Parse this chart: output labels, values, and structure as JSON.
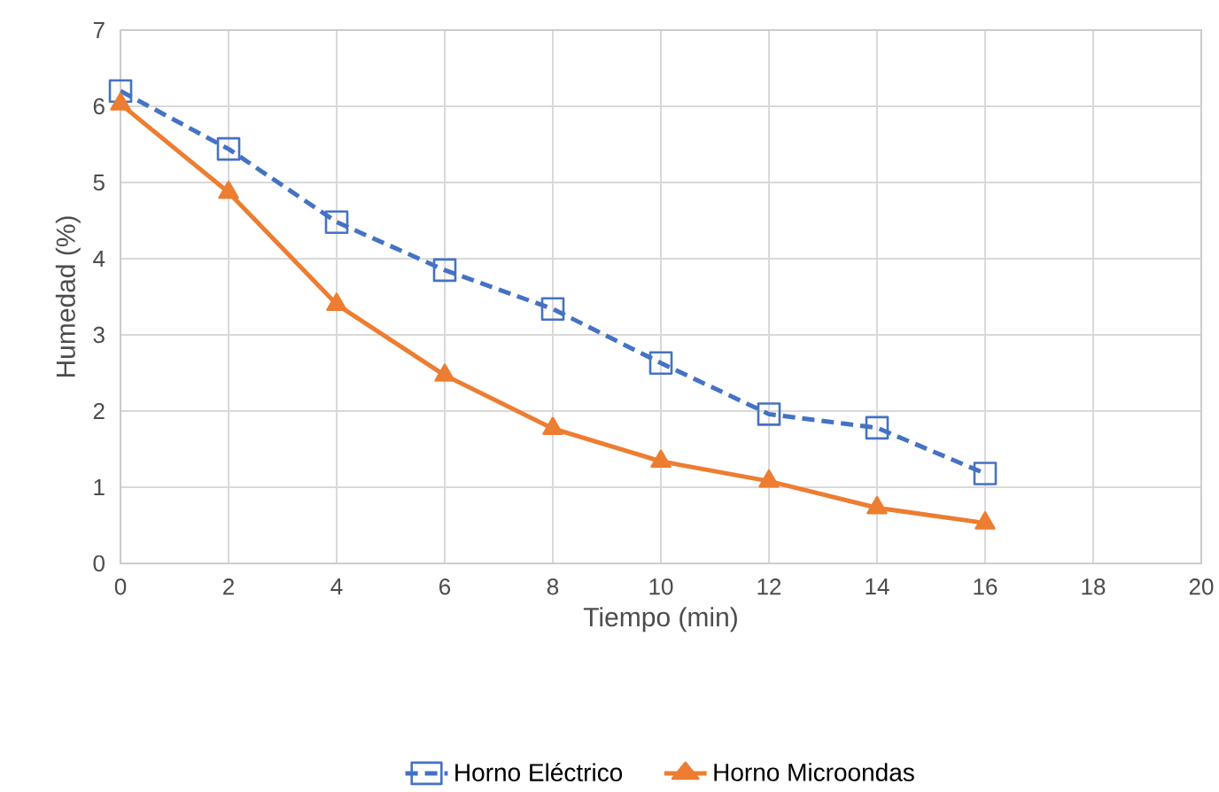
{
  "chart_data": {
    "type": "line",
    "xlabel": "Tiempo  (min)",
    "ylabel": "Humedad (%)",
    "x": [
      0,
      2,
      4,
      6,
      8,
      10,
      12,
      14,
      16
    ],
    "series": [
      {
        "name": "Horno Eléctrico",
        "color": "#4472c4",
        "marker": "square",
        "line_style": "dashed",
        "values": [
          6.2,
          5.44,
          4.48,
          3.85,
          3.34,
          2.63,
          1.96,
          1.78,
          1.18
        ]
      },
      {
        "name": "Horno Microondas",
        "color": "#ed7d31",
        "marker": "triangle",
        "line_style": "solid",
        "values": [
          6.03,
          4.87,
          3.4,
          2.47,
          1.77,
          1.34,
          1.08,
          0.73,
          0.53
        ]
      }
    ],
    "xlim": [
      0,
      20
    ],
    "xticks": [
      0,
      2,
      4,
      6,
      8,
      10,
      12,
      14,
      16,
      18,
      20
    ],
    "ylim": [
      0,
      7
    ],
    "yticks": [
      0,
      1,
      2,
      3,
      4,
      5,
      6,
      7
    ],
    "grid": true,
    "legend": "bottom"
  }
}
